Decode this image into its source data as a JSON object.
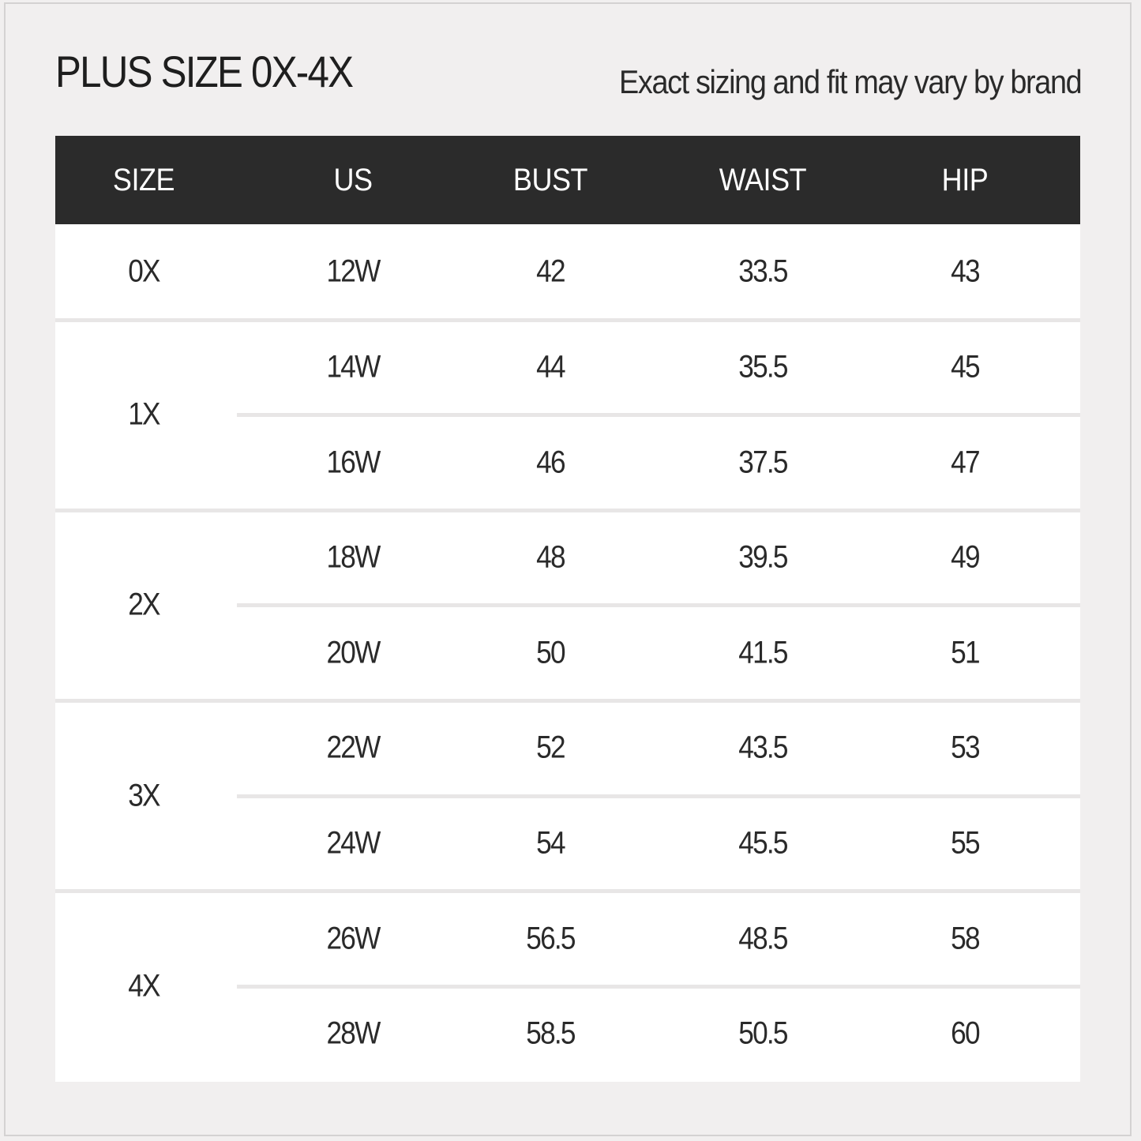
{
  "title": "PLUS SIZE 0X-4X",
  "subtitle": "Exact sizing and fit may vary by brand",
  "columns": [
    "SIZE",
    "US",
    "BUST",
    "WAIST",
    "HIP"
  ],
  "groups": [
    {
      "size": "0X",
      "rows": [
        [
          "12W",
          "42",
          "33.5",
          "43"
        ]
      ]
    },
    {
      "size": "1X",
      "rows": [
        [
          "14W",
          "44",
          "35.5",
          "45"
        ],
        [
          "16W",
          "46",
          "37.5",
          "47"
        ]
      ]
    },
    {
      "size": "2X",
      "rows": [
        [
          "18W",
          "48",
          "39.5",
          "49"
        ],
        [
          "20W",
          "50",
          "41.5",
          "51"
        ]
      ]
    },
    {
      "size": "3X",
      "rows": [
        [
          "22W",
          "52",
          "43.5",
          "53"
        ],
        [
          "24W",
          "54",
          "45.5",
          "55"
        ]
      ]
    },
    {
      "size": "4X",
      "rows": [
        [
          "26W",
          "56.5",
          "48.5",
          "58"
        ],
        [
          "28W",
          "58.5",
          "50.5",
          "60"
        ]
      ]
    }
  ],
  "colors": {
    "header_bg": "#2b2b2b",
    "page_bg": "#f1efef"
  }
}
